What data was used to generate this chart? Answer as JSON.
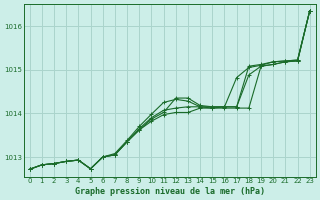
{
  "bg_color": "#cceee8",
  "grid_color": "#aad4cc",
  "line_color": "#1a6b2a",
  "xlabel": "Graphe pression niveau de la mer (hPa)",
  "xlim": [
    -0.5,
    23.5
  ],
  "ylim": [
    1012.55,
    1016.5
  ],
  "yticks": [
    1013,
    1014,
    1015,
    1016
  ],
  "xticks": [
    0,
    1,
    2,
    3,
    4,
    5,
    6,
    7,
    8,
    9,
    10,
    11,
    12,
    13,
    14,
    15,
    16,
    17,
    18,
    19,
    20,
    21,
    22,
    23
  ],
  "series": [
    [
      1012.72,
      1012.82,
      1012.85,
      1012.9,
      1012.93,
      1012.73,
      1013.0,
      1013.05,
      1013.35,
      1013.62,
      1013.82,
      1013.97,
      1014.02,
      1014.02,
      1014.12,
      1014.12,
      1014.12,
      1014.12,
      1014.12,
      1015.08,
      1015.12,
      1015.18,
      1015.2,
      1016.35
    ],
    [
      1012.72,
      1012.82,
      1012.85,
      1012.9,
      1012.93,
      1012.73,
      1013.0,
      1013.08,
      1013.38,
      1013.7,
      1013.98,
      1014.25,
      1014.32,
      1014.28,
      1014.15,
      1014.12,
      1014.15,
      1014.82,
      1015.05,
      1015.1,
      1015.18,
      1015.2,
      1015.22,
      1016.35
    ],
    [
      1012.72,
      1012.82,
      1012.85,
      1012.9,
      1012.93,
      1012.73,
      1013.0,
      1013.05,
      1013.35,
      1013.62,
      1013.87,
      1014.02,
      1014.35,
      1014.35,
      1014.18,
      1014.15,
      1014.15,
      1014.15,
      1014.88,
      1015.08,
      1015.12,
      1015.18,
      1015.2,
      1016.35
    ],
    [
      1012.72,
      1012.82,
      1012.85,
      1012.9,
      1012.93,
      1012.73,
      1013.0,
      1013.05,
      1013.35,
      1013.65,
      1013.9,
      1014.07,
      1014.12,
      1014.15,
      1014.15,
      1014.15,
      1014.15,
      1014.15,
      1015.08,
      1015.12,
      1015.18,
      1015.2,
      1015.22,
      1016.35
    ]
  ]
}
